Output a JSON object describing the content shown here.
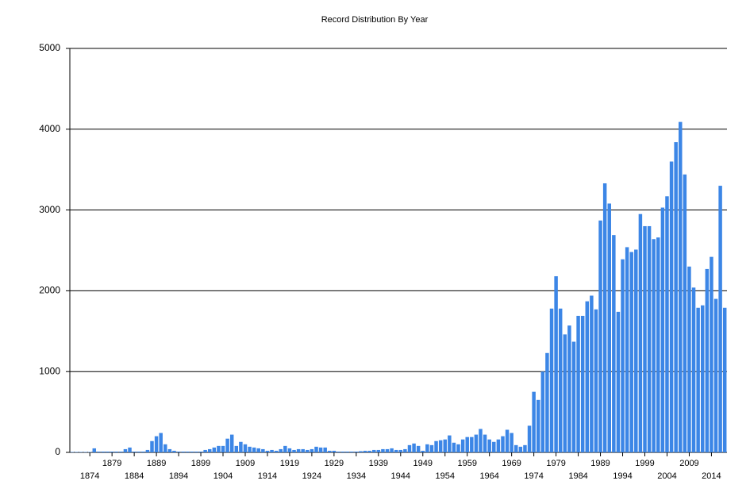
{
  "chart_data": {
    "type": "bar",
    "title": "Record Distribution By Year",
    "categories": [
      null,
      null,
      null,
      null,
      "1874",
      null,
      null,
      null,
      null,
      "1879",
      null,
      null,
      null,
      null,
      "1884",
      null,
      null,
      null,
      null,
      "1889",
      null,
      null,
      null,
      null,
      "1894",
      null,
      null,
      null,
      null,
      "1899",
      null,
      null,
      null,
      null,
      "1904",
      null,
      null,
      null,
      null,
      "1909",
      null,
      null,
      null,
      null,
      "1914",
      null,
      null,
      null,
      null,
      "1919",
      null,
      null,
      null,
      null,
      "1924",
      null,
      null,
      null,
      null,
      "1929",
      null,
      null,
      null,
      null,
      "1934",
      null,
      null,
      null,
      null,
      "1939",
      null,
      null,
      null,
      null,
      "1944",
      null,
      null,
      null,
      null,
      "1949",
      null,
      null,
      null,
      null,
      "1954",
      null,
      null,
      null,
      null,
      "1959",
      null,
      null,
      null,
      null,
      "1964",
      null,
      null,
      null,
      null,
      "1969",
      null,
      null,
      null,
      null,
      "1974",
      null,
      null,
      null,
      null,
      "1979",
      null,
      null,
      null,
      null,
      "1984",
      null,
      null,
      null,
      null,
      "1989",
      null,
      null,
      null,
      null,
      "1994",
      null,
      null,
      null,
      null,
      "1999",
      null,
      null,
      null,
      null,
      "2004",
      null,
      null,
      null,
      null,
      "2009",
      null,
      null,
      null,
      null,
      "2014",
      null,
      null,
      null
    ],
    "values": [
      5,
      5,
      5,
      5,
      5,
      50,
      10,
      10,
      10,
      10,
      10,
      10,
      40,
      60,
      10,
      10,
      10,
      30,
      140,
      200,
      240,
      100,
      40,
      20,
      10,
      10,
      10,
      10,
      10,
      10,
      30,
      40,
      60,
      80,
      80,
      170,
      220,
      80,
      130,
      100,
      70,
      60,
      50,
      40,
      20,
      30,
      20,
      40,
      80,
      50,
      30,
      40,
      40,
      30,
      40,
      70,
      60,
      60,
      20,
      20,
      10,
      10,
      10,
      10,
      10,
      15,
      20,
      20,
      30,
      30,
      40,
      40,
      50,
      30,
      30,
      40,
      90,
      110,
      80,
      20,
      100,
      90,
      140,
      150,
      160,
      210,
      120,
      100,
      160,
      190,
      190,
      220,
      290,
      220,
      160,
      130,
      160,
      200,
      280,
      240,
      90,
      70,
      90,
      330,
      750,
      650,
      1000,
      1230,
      1780,
      2180,
      1780,
      1460,
      1570,
      1370,
      1690,
      1690,
      1870,
      1940,
      1770,
      2870,
      3330,
      3080,
      2690,
      1740,
      2390,
      2540,
      2480,
      2510,
      2950,
      2800,
      2800,
      2640,
      2660,
      3030,
      3170,
      3600,
      3840,
      4090,
      3440,
      2300,
      2040,
      1790,
      1820,
      2270,
      2420,
      1900,
      3300,
      1790
    ],
    "color": "#3c86e6",
    "ylim": [
      0,
      5000
    ],
    "yticks": [
      0,
      1000,
      2000,
      3000,
      4000,
      5000
    ],
    "grid": true
  }
}
